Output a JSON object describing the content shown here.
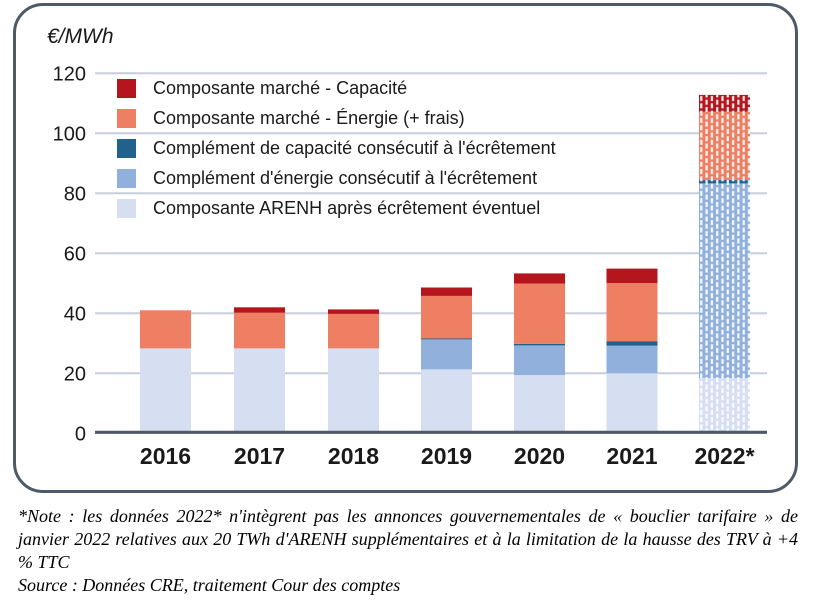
{
  "unit_label": "€/MWh",
  "chart_data": {
    "type": "bar",
    "stacked": true,
    "title": "",
    "ylabel": "€/MWh",
    "xlabel": "",
    "ylim": [
      0,
      120
    ],
    "yticks": [
      0,
      20,
      40,
      60,
      80,
      100,
      120
    ],
    "grid": true,
    "legend_position": "upper-left-inside",
    "categories": [
      "2016",
      "2017",
      "2018",
      "2019",
      "2020",
      "2021",
      "2022*"
    ],
    "hatched_categories": [
      "2022*"
    ],
    "series": [
      {
        "name": "Composante ARENH après écrêtement éventuel",
        "color": "#d6dff1",
        "values": [
          28.3,
          28.3,
          28.3,
          21.3,
          19.4,
          20.0,
          18.4
        ]
      },
      {
        "name": "Complément d'énergie consécutif à l'écrêtement",
        "color": "#91b1dc",
        "values": [
          0,
          0,
          0,
          10.0,
          9.9,
          9.2,
          64.9
        ]
      },
      {
        "name": "Complément de capacité consécutif à l'écrêtement",
        "color": "#20618e",
        "values": [
          0,
          0,
          0,
          0.3,
          0.5,
          1.5,
          1.1
        ]
      },
      {
        "name": "Composante marché - Énergie (+ frais)",
        "color": "#ee7f63",
        "values": [
          12.7,
          11.9,
          11.5,
          14.2,
          20.1,
          19.4,
          22.8
        ]
      },
      {
        "name": "Composante marché - Capacité",
        "color": "#b5161d",
        "values": [
          0,
          1.8,
          1.5,
          2.8,
          3.4,
          4.8,
          5.6
        ]
      }
    ],
    "totals": [
      41.0,
      42.0,
      41.3,
      48.6,
      53.3,
      54.9,
      112.8
    ]
  },
  "note": {
    "text": "*Note : les données 2022* n'intègrent pas les annonces gouvernementales de « bouclier tarifaire » de janvier 2022 relatives aux 20 TWh d'ARENH supplémentaires et à la limitation de la hausse des TRV à +4 % TTC",
    "source": "Source : Données CRE, traitement Cour des comptes"
  },
  "colors": {
    "card_border": "#4d5a68",
    "axis_line": "#4d5a68",
    "gridline": "#c7cedb",
    "text": "#1a1a1a",
    "hatch_dash": "#ffffff"
  }
}
